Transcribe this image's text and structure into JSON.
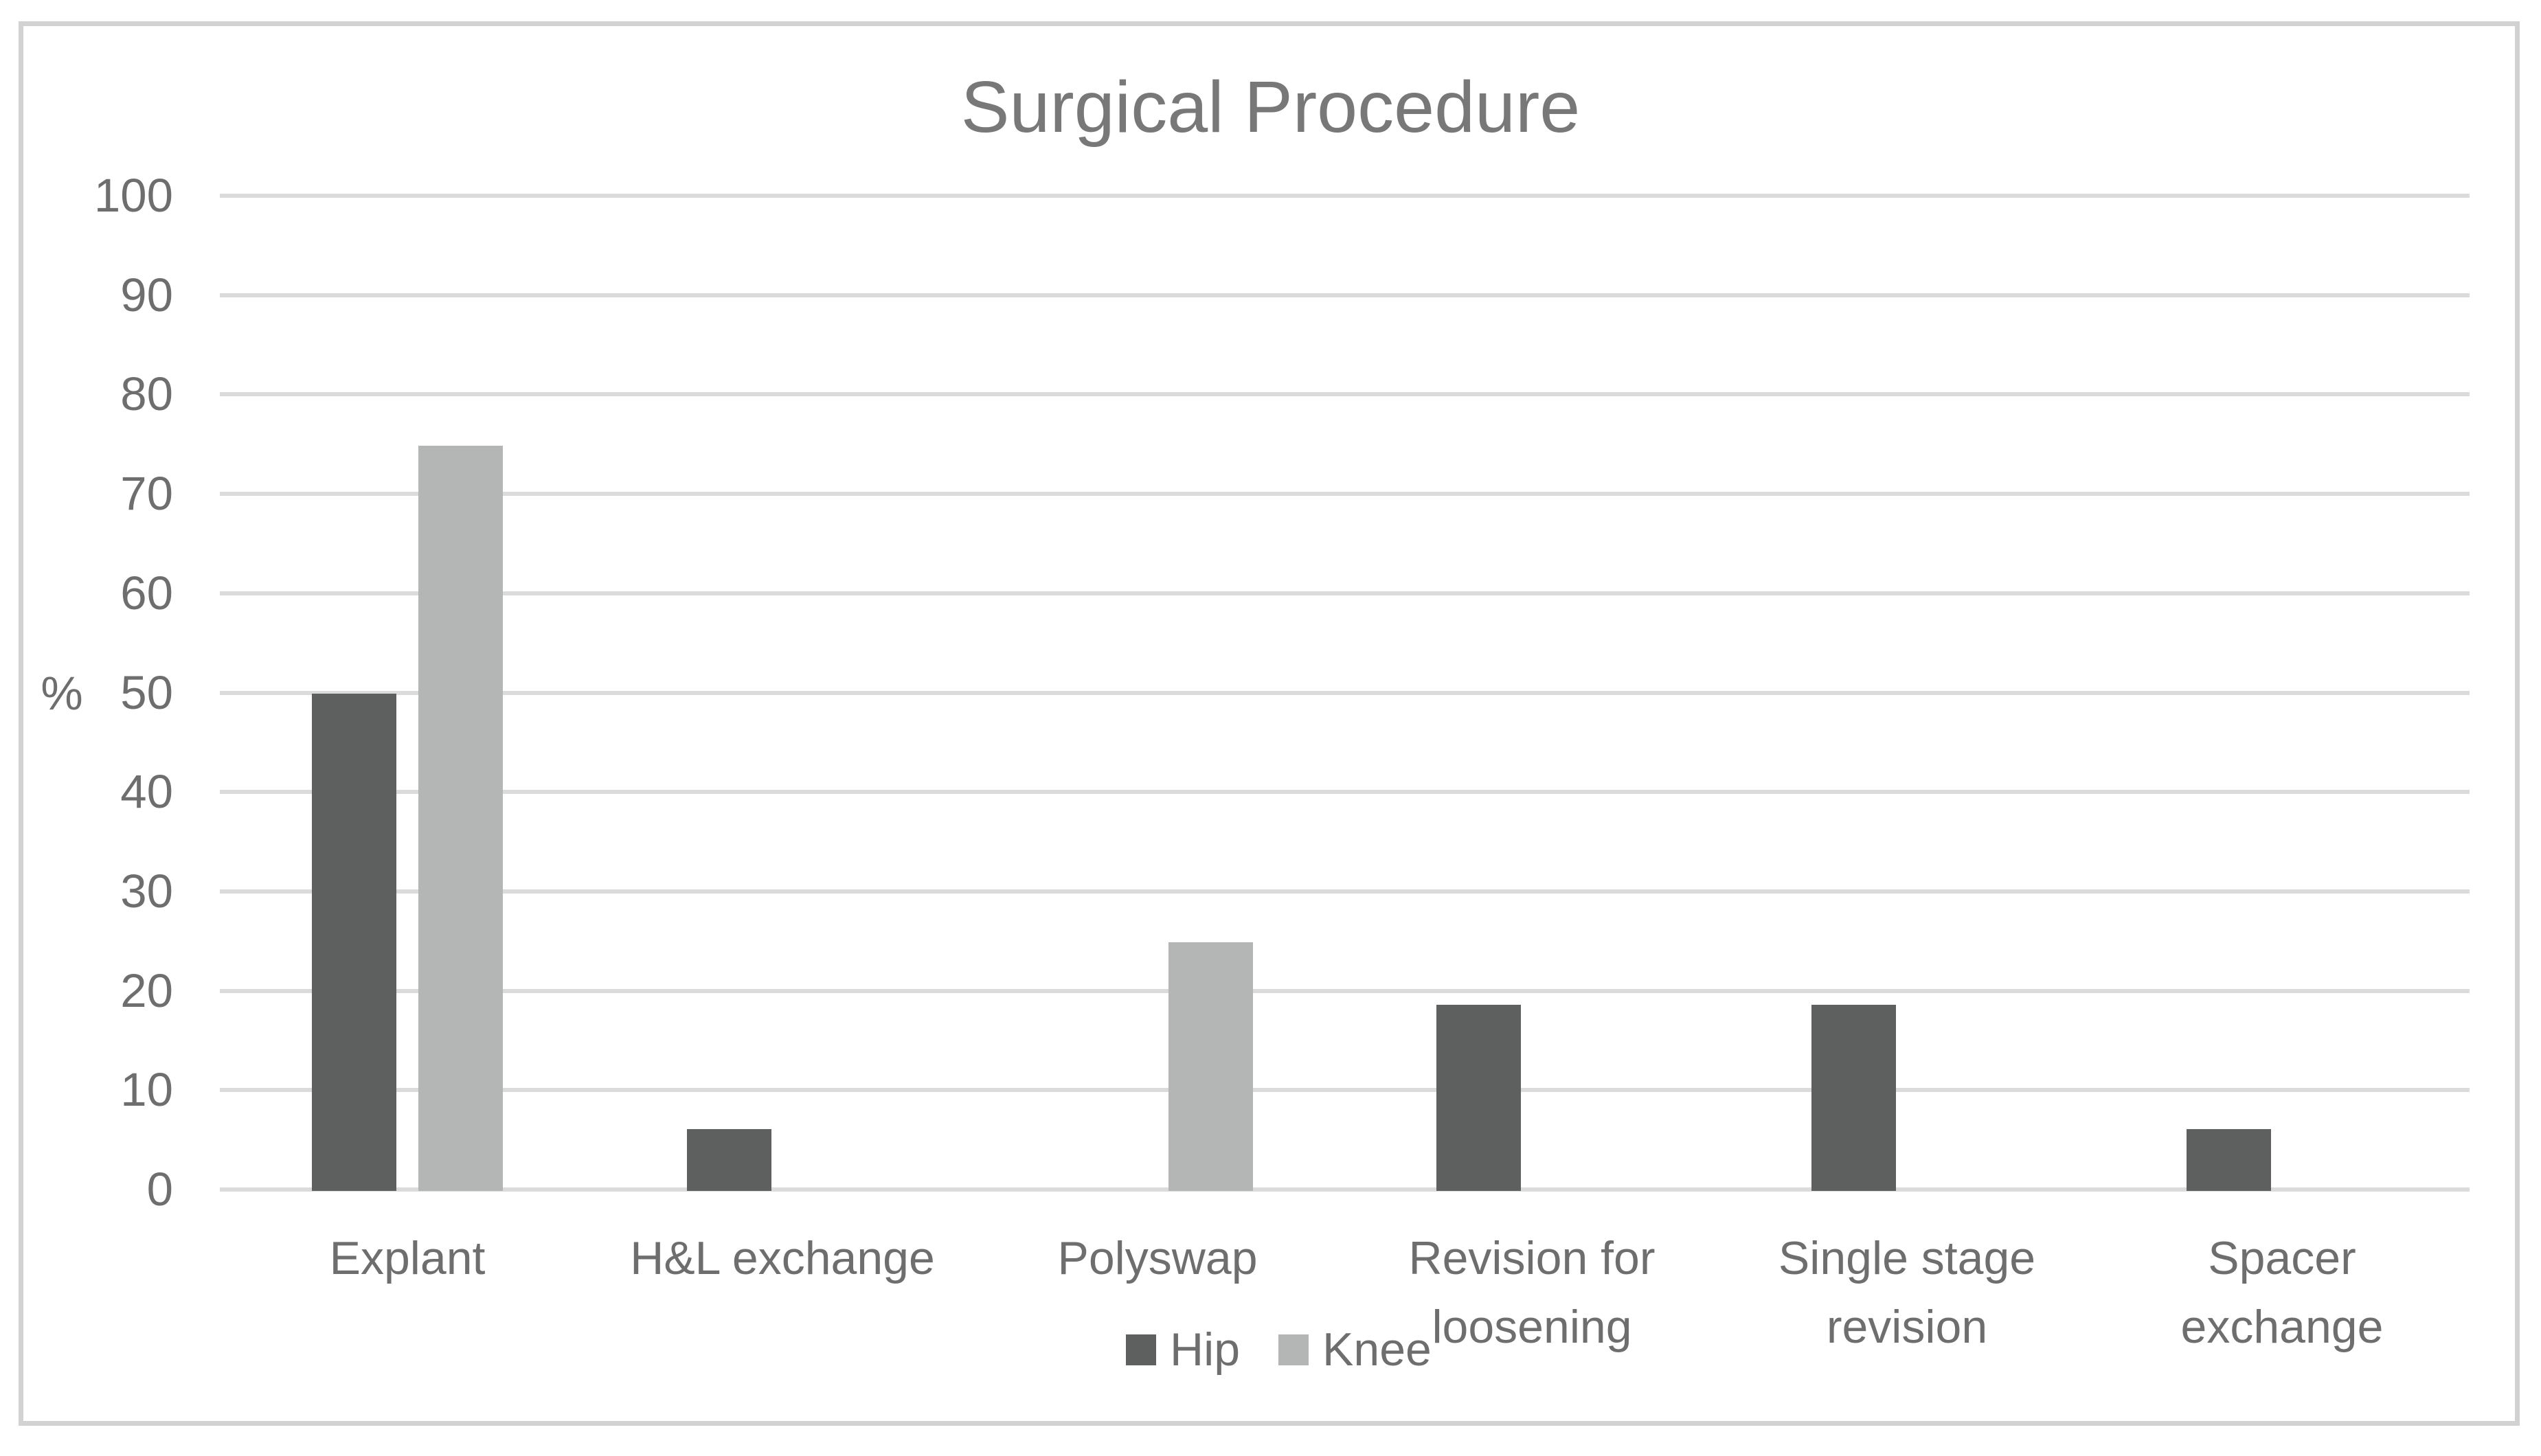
{
  "chart_data": {
    "type": "bar",
    "title": "Surgical Procedure",
    "xlabel": "",
    "ylabel": "%",
    "ylim": [
      0,
      100
    ],
    "ytick_step": 10,
    "yticks": [
      0,
      10,
      20,
      30,
      40,
      50,
      60,
      70,
      80,
      90,
      100
    ],
    "grid": true,
    "legend_position": "bottom-center",
    "categories": [
      "Explant",
      "H&L exchange",
      "Polyswap",
      "Revision for loosening",
      "Single stage revision",
      "Spacer exchange"
    ],
    "category_display": [
      "Explant",
      "H&L exchange",
      "Polyswap",
      "Revision for\nloosening",
      "Single stage\nrevision",
      "Spacer\nexchange"
    ],
    "series": [
      {
        "name": "Hip",
        "color": "#5e6060",
        "values": [
          50,
          6.25,
          0,
          18.75,
          18.75,
          6.25
        ]
      },
      {
        "name": "Knee",
        "color": "#b4b5b5",
        "values": [
          75,
          0,
          25,
          0,
          0,
          0
        ]
      }
    ],
    "colors": {
      "background": "#ffffff",
      "frame_border": "#d2d2d2",
      "gridline": "#dbdbdb",
      "title_text": "#787878",
      "axis_text": "#6e6e6e"
    }
  }
}
